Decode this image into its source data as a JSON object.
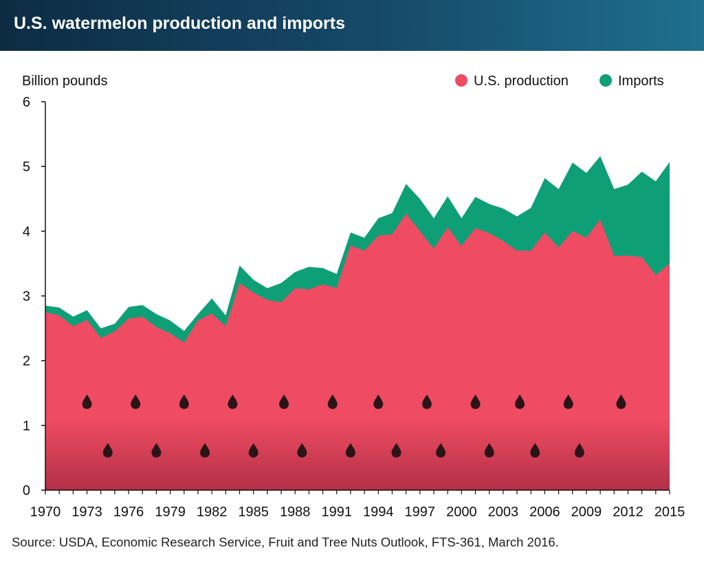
{
  "title": "U.S. watermelon production and imports",
  "source": "Source: USDA, Economic Research Service, Fruit and Tree Nuts Outlook, FTS-361, March 2016.",
  "colors": {
    "production": "#ef4b62",
    "imports": "#0f9f77",
    "seed": "#2a1418"
  },
  "chart_data": {
    "type": "area",
    "stacked": true,
    "title": "U.S. watermelon production and imports",
    "ylabel": "Billion pounds",
    "xlabel": "",
    "ylim": [
      0,
      6
    ],
    "yticks": [
      0,
      1,
      2,
      3,
      4,
      5,
      6
    ],
    "xticks": [
      1970,
      1973,
      1976,
      1979,
      1982,
      1985,
      1988,
      1991,
      1994,
      1997,
      2000,
      2003,
      2006,
      2009,
      2012,
      2015
    ],
    "legend_position": "top-right",
    "x": [
      1970,
      1971,
      1972,
      1973,
      1974,
      1975,
      1976,
      1977,
      1978,
      1979,
      1980,
      1981,
      1982,
      1983,
      1984,
      1985,
      1986,
      1987,
      1988,
      1989,
      1990,
      1991,
      1992,
      1993,
      1994,
      1995,
      1996,
      1997,
      1998,
      1999,
      2000,
      2001,
      2002,
      2003,
      2004,
      2005,
      2006,
      2007,
      2008,
      2009,
      2010,
      2011,
      2012,
      2013,
      2014,
      2015
    ],
    "series": [
      {
        "name": "U.S. production",
        "values": [
          2.75,
          2.7,
          2.53,
          2.63,
          2.35,
          2.45,
          2.65,
          2.68,
          2.52,
          2.42,
          2.28,
          2.62,
          2.73,
          2.53,
          3.2,
          3.05,
          2.94,
          2.9,
          3.12,
          3.1,
          3.18,
          3.12,
          3.78,
          3.7,
          3.93,
          3.95,
          4.27,
          4.0,
          3.73,
          4.06,
          3.77,
          4.05,
          3.97,
          3.85,
          3.7,
          3.7,
          3.98,
          3.75,
          4.0,
          3.9,
          4.18,
          3.62,
          3.62,
          3.6,
          3.32,
          3.5
        ]
      },
      {
        "name": "Imports",
        "values": [
          0.1,
          0.12,
          0.15,
          0.15,
          0.15,
          0.12,
          0.18,
          0.18,
          0.2,
          0.2,
          0.18,
          0.1,
          0.23,
          0.17,
          0.27,
          0.2,
          0.18,
          0.3,
          0.25,
          0.35,
          0.25,
          0.22,
          0.2,
          0.2,
          0.27,
          0.33,
          0.46,
          0.5,
          0.47,
          0.48,
          0.43,
          0.48,
          0.45,
          0.5,
          0.53,
          0.66,
          0.84,
          0.9,
          1.06,
          1.0,
          0.98,
          1.03,
          1.1,
          1.32,
          1.45,
          1.57
        ]
      }
    ]
  }
}
